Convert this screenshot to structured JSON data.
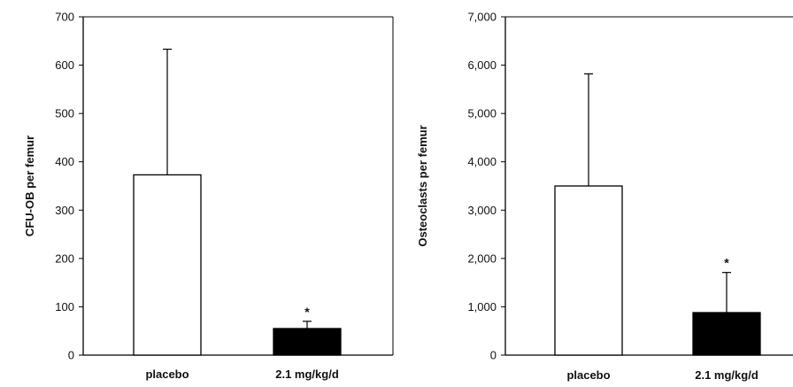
{
  "chart_data": [
    {
      "type": "bar",
      "ylabel": "CFU-OB per femur",
      "categories": [
        "placebo",
        "2.1 mg/kg/d"
      ],
      "values": [
        373,
        55
      ],
      "error_upper": [
        633,
        70
      ],
      "significance": [
        "",
        "*"
      ],
      "ylim": [
        0,
        700
      ],
      "yticks": [
        0,
        100,
        200,
        300,
        400,
        500,
        600,
        700
      ],
      "ytick_labels": [
        "0",
        "100",
        "200",
        "300",
        "400",
        "500",
        "600",
        "700"
      ],
      "bar_colors": [
        "#ffffff",
        "#000000"
      ],
      "grid": false
    },
    {
      "type": "bar",
      "ylabel": "Osteoclasts  per femur",
      "categories": [
        "placebo",
        "2.1 mg/kg/d"
      ],
      "values": [
        3500,
        880
      ],
      "error_upper": [
        5820,
        1710
      ],
      "significance": [
        "",
        "*"
      ],
      "ylim": [
        0,
        7000
      ],
      "yticks": [
        0,
        1000,
        2000,
        3000,
        4000,
        5000,
        6000,
        7000
      ],
      "ytick_labels": [
        "0",
        "1,000",
        "2,000",
        "3,000",
        "4,000",
        "5,000",
        "6,000",
        "7,000"
      ],
      "bar_colors": [
        "#ffffff",
        "#000000"
      ],
      "grid": false
    }
  ]
}
